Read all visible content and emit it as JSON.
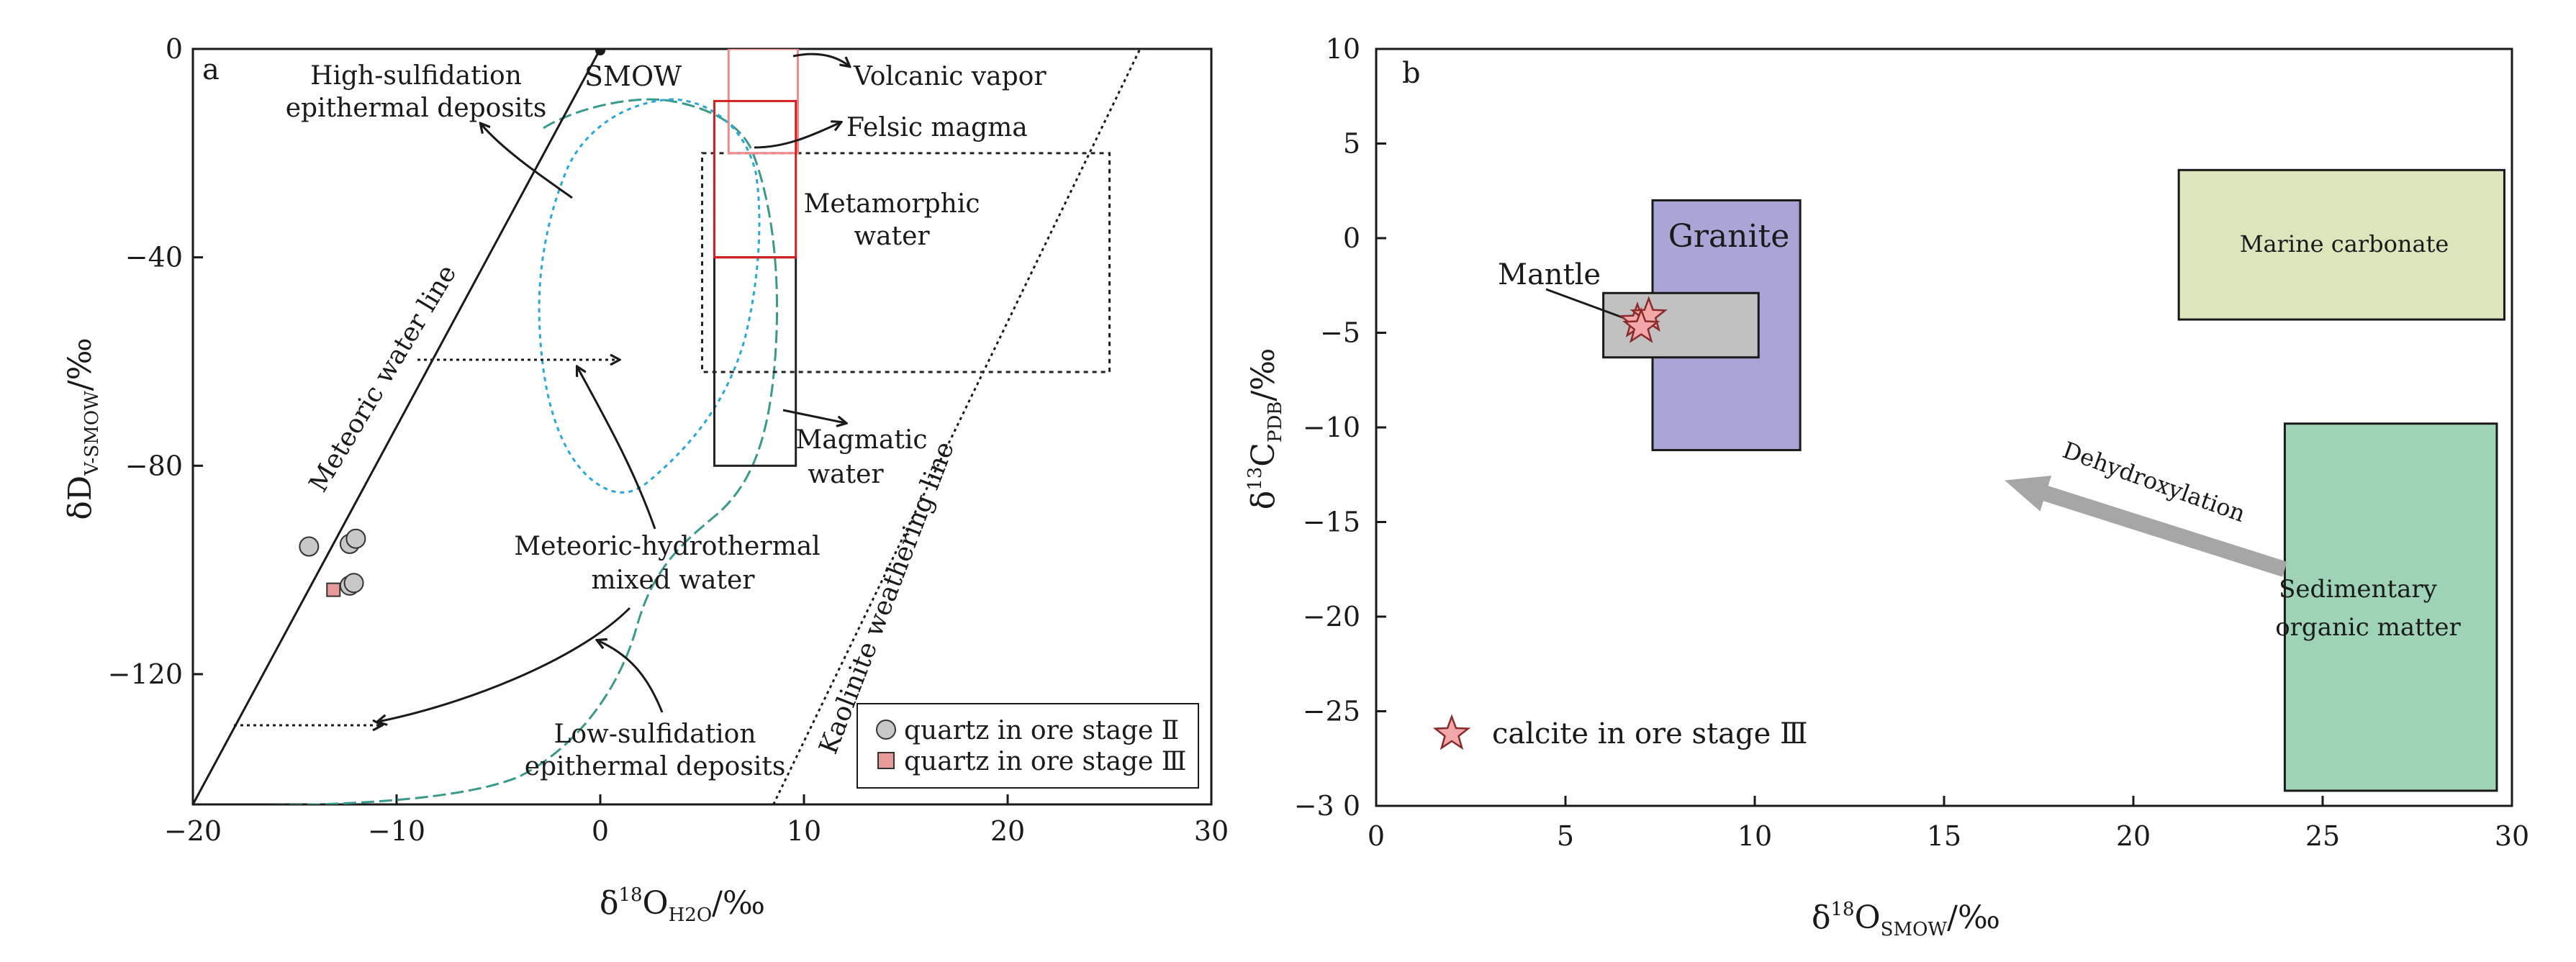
{
  "chart_data": [
    {
      "type": "scatter",
      "panel_label": "a",
      "xlabel": {
        "main": "δ",
        "sup": "18",
        "sym": "O",
        "sub": "H2O",
        "unit": "/‰"
      },
      "ylabel": {
        "main": "δD",
        "sub": "V-SMOW",
        "unit": "/‰"
      },
      "xlim": [
        -20,
        30
      ],
      "ylim": [
        -145,
        0
      ],
      "xticks": [
        -20,
        -10,
        0,
        10,
        20,
        30
      ],
      "yticks": [
        0,
        -40,
        -80,
        -120
      ],
      "tick_labels": {
        "x": [
          "−20",
          "−10",
          "0",
          "10",
          "20",
          "30"
        ],
        "y": [
          "0",
          "−40",
          "−80",
          "−120"
        ]
      },
      "lines": {
        "meteoric": {
          "label": "Meteoric water line",
          "from": [
            -20,
            -145
          ],
          "to": [
            0,
            0
          ]
        },
        "kaolinite": {
          "label": "Kaolinite weathering line",
          "from": [
            8.5,
            -145
          ],
          "to": [
            26.5,
            0
          ]
        }
      },
      "smow": {
        "label": "SMOW",
        "x": 0,
        "y": 0
      },
      "boxes": {
        "volcanic_vapor": {
          "label": "Volcanic vapor",
          "x": [
            6.3,
            9.7
          ],
          "y": [
            -20,
            0
          ],
          "color": "#f08a8a"
        },
        "felsic_magma": {
          "label": "Felsic magma",
          "x": [
            5.6,
            9.6
          ],
          "y": [
            -40,
            -10
          ],
          "color": "#d42020"
        },
        "metamorphic_water": {
          "label": [
            "Metamorphic",
            "water"
          ],
          "x": [
            5.0,
            25.0
          ],
          "y": [
            -62,
            -20
          ],
          "color": "#222222"
        },
        "magmatic_water": {
          "label": [
            "Magmatic",
            "water"
          ],
          "x": [
            5.6,
            9.6
          ],
          "y": [
            -80,
            -40
          ],
          "color": "#222222"
        }
      },
      "fields": {
        "high_sulfidation": {
          "label": [
            "High-sulfidation",
            "epithermal deposits"
          ]
        },
        "low_sulfidation": {
          "label": [
            "Low-sulfidation",
            "epithermal deposits"
          ]
        },
        "mixed_water": {
          "label": [
            "Meteoric-hydrothermal",
            "mixed  water"
          ]
        }
      },
      "series": [
        {
          "name": "quartz in ore stage Ⅱ",
          "marker": "circle",
          "color": "#c8c8c8",
          "points": [
            [
              -14.3,
              -95.5
            ],
            [
              -12.3,
              -95
            ],
            [
              -12.0,
              -94
            ],
            [
              -12.3,
              -103
            ],
            [
              -12.1,
              -102.5
            ]
          ]
        },
        {
          "name": "quartz in ore stage Ⅲ",
          "marker": "square",
          "color": "#e89a9a",
          "points": [
            [
              -13.1,
              -103.8
            ]
          ]
        }
      ]
    },
    {
      "type": "scatter",
      "panel_label": "b",
      "xlabel": {
        "main": "δ",
        "sup": "18",
        "sym": "O",
        "sub": "SMOW",
        "unit": "/‰"
      },
      "ylabel": {
        "main": "δ",
        "sup": "13",
        "sym": "C",
        "sub": "PDB",
        "unit": "/‰"
      },
      "xlim": [
        0,
        30
      ],
      "ylim": [
        -30,
        10
      ],
      "xticks": [
        0,
        5,
        10,
        15,
        20,
        25,
        30
      ],
      "yticks": [
        10,
        5,
        0,
        -5,
        -10,
        -15,
        -20,
        -25,
        -30
      ],
      "tick_labels": {
        "x": [
          "0",
          "5",
          "10",
          "15",
          "20",
          "25",
          "30"
        ],
        "y": [
          "10",
          "5",
          "0",
          "−5",
          "−10",
          "−15",
          "−20",
          "−25",
          "−3 0"
        ]
      },
      "boxes": {
        "granite": {
          "label": "Granite",
          "x": [
            7.3,
            11.2
          ],
          "y": [
            -11.2,
            2
          ],
          "color": "#a9a5d6"
        },
        "mantle": {
          "label": "Mantle",
          "x": [
            6.0,
            10.1
          ],
          "y": [
            -6.3,
            -2.9
          ],
          "color": "#c1c1c1"
        },
        "marine_carbonate": {
          "label": "Marine carbonate",
          "x": [
            21.2,
            29.8
          ],
          "y": [
            -4.3,
            3.6
          ],
          "color": "#dce6bd"
        },
        "sedimentary_organic": {
          "label": [
            "Sedimentary",
            "organic matter"
          ],
          "x": [
            24.0,
            29.6
          ],
          "y": [
            -29.2,
            -9.8
          ],
          "color": "#9ed3b5"
        }
      },
      "arrow": {
        "label": "Dehydroxylation",
        "from": [
          24.0,
          -17.5
        ],
        "to": [
          16.6,
          -12.8
        ],
        "color": "#a6a6a6"
      },
      "series": [
        {
          "name": "calcite in ore stage Ⅲ",
          "marker": "star",
          "color": "#f2a8a8",
          "points": [
            [
              6.9,
              -4.4
            ],
            [
              7.2,
              -4.1
            ],
            [
              7.0,
              -4.7
            ]
          ]
        }
      ]
    }
  ]
}
